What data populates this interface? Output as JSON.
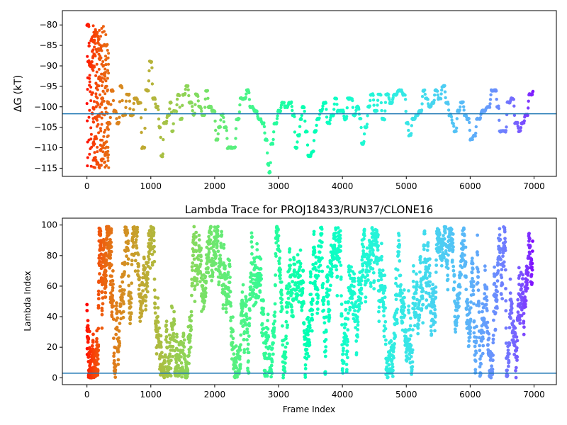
{
  "chart_data": [
    {
      "type": "scatter",
      "title": "",
      "xlabel": "",
      "ylabel": "ΔG (kT)",
      "xlim": [
        -385,
        7350
      ],
      "ylim": [
        -117,
        -76.5
      ],
      "xticks": [
        0,
        1000,
        2000,
        3000,
        4000,
        5000,
        6000,
        7000
      ],
      "yticks": [
        -80,
        -85,
        -90,
        -95,
        -100,
        -105,
        -110,
        -115
      ],
      "hline": -101.7,
      "hline_color": "#1f77b4",
      "colormap": "rainbow (early frames red → late frames violet)",
      "grid": false,
      "x_max_frame": 7000,
      "trace": [
        [
          0,
          -80
        ],
        [
          40,
          -90
        ],
        [
          90,
          -84
        ],
        [
          130,
          -82
        ],
        [
          180,
          -86
        ],
        [
          230,
          -98
        ],
        [
          260,
          -92
        ],
        [
          300,
          -85
        ],
        [
          330,
          -104
        ],
        [
          380,
          -96
        ],
        [
          420,
          -101
        ],
        [
          470,
          -104
        ],
        [
          520,
          -95
        ],
        [
          560,
          -102
        ],
        [
          620,
          -97
        ],
        [
          680,
          -102
        ],
        [
          740,
          -98
        ],
        [
          800,
          -99
        ],
        [
          860,
          -110
        ],
        [
          920,
          -96
        ],
        [
          980,
          -89
        ],
        [
          1030,
          -98
        ],
        [
          1080,
          -100
        ],
        [
          1130,
          -105
        ],
        [
          1160,
          -112
        ],
        [
          1200,
          -104
        ],
        [
          1260,
          -102
        ],
        [
          1300,
          -99
        ],
        [
          1330,
          -106
        ],
        [
          1360,
          -101
        ],
        [
          1420,
          -97
        ],
        [
          1460,
          -103
        ],
        [
          1500,
          -97
        ],
        [
          1550,
          -95
        ],
        [
          1600,
          -99
        ],
        [
          1660,
          -102
        ],
        [
          1700,
          -97
        ],
        [
          1750,
          -100
        ],
        [
          1800,
          -102
        ],
        [
          1860,
          -96
        ],
        [
          1900,
          -100
        ],
        [
          1960,
          -101
        ],
        [
          2020,
          -108
        ],
        [
          2060,
          -105
        ],
        [
          2100,
          -102
        ],
        [
          2150,
          -105
        ],
        [
          2200,
          -110
        ],
        [
          2280,
          -110
        ],
        [
          2340,
          -103
        ],
        [
          2400,
          -98
        ],
        [
          2450,
          -98
        ],
        [
          2500,
          -96
        ],
        [
          2550,
          -100
        ],
        [
          2620,
          -101
        ],
        [
          2680,
          -103
        ],
        [
          2740,
          -104
        ],
        [
          2790,
          -108
        ],
        [
          2830,
          -114
        ],
        [
          2850,
          -116
        ],
        [
          2880,
          -109
        ],
        [
          2930,
          -104
        ],
        [
          2990,
          -101
        ],
        [
          3050,
          -99
        ],
        [
          3100,
          -100
        ],
        [
          3160,
          -99
        ],
        [
          3220,
          -102
        ],
        [
          3260,
          -110
        ],
        [
          3300,
          -107
        ],
        [
          3340,
          -103
        ],
        [
          3370,
          -100
        ],
        [
          3420,
          -106
        ],
        [
          3460,
          -112
        ],
        [
          3520,
          -111
        ],
        [
          3560,
          -106
        ],
        [
          3600,
          -103
        ],
        [
          3650,
          -101
        ],
        [
          3700,
          -99
        ],
        [
          3760,
          -104
        ],
        [
          3820,
          -102
        ],
        [
          3880,
          -98
        ],
        [
          3920,
          -101
        ],
        [
          3980,
          -101
        ],
        [
          4030,
          -103
        ],
        [
          4080,
          -98
        ],
        [
          4120,
          -98
        ],
        [
          4170,
          -102
        ],
        [
          4220,
          -100
        ],
        [
          4270,
          -103
        ],
        [
          4300,
          -109
        ],
        [
          4350,
          -105
        ],
        [
          4400,
          -100
        ],
        [
          4440,
          -97
        ],
        [
          4500,
          -101
        ],
        [
          4560,
          -97
        ],
        [
          4620,
          -103
        ],
        [
          4680,
          -97
        ],
        [
          4740,
          -99
        ],
        [
          4800,
          -97
        ],
        [
          4870,
          -96
        ],
        [
          4950,
          -97
        ],
        [
          5000,
          -104
        ],
        [
          5040,
          -107
        ],
        [
          5090,
          -103
        ],
        [
          5150,
          -102
        ],
        [
          5200,
          -101
        ],
        [
          5260,
          -96
        ],
        [
          5300,
          -98
        ],
        [
          5350,
          -100
        ],
        [
          5400,
          -99
        ],
        [
          5450,
          -96
        ],
        [
          5500,
          -98
        ],
        [
          5560,
          -95
        ],
        [
          5620,
          -99
        ],
        [
          5670,
          -102
        ],
        [
          5720,
          -104
        ],
        [
          5750,
          -106
        ],
        [
          5800,
          -101
        ],
        [
          5850,
          -99
        ],
        [
          5910,
          -102
        ],
        [
          5950,
          -103
        ],
        [
          6000,
          -108
        ],
        [
          6050,
          -107
        ],
        [
          6100,
          -103
        ],
        [
          6180,
          -101
        ],
        [
          6260,
          -100
        ],
        [
          6330,
          -96
        ],
        [
          6380,
          -96
        ],
        [
          6420,
          -100
        ],
        [
          6460,
          -106
        ],
        [
          6530,
          -106
        ],
        [
          6580,
          -99
        ],
        [
          6640,
          -98
        ],
        [
          6700,
          -104
        ],
        [
          6760,
          -106
        ],
        [
          6800,
          -104
        ],
        [
          6860,
          -102
        ],
        [
          6920,
          -97
        ],
        [
          6990,
          -96
        ]
      ],
      "early_scatter": {
        "frame_range": [
          0,
          340
        ],
        "value_range": [
          -115,
          -80
        ]
      }
    },
    {
      "type": "scatter",
      "title": "Lambda Trace for PROJ18433/RUN37/CLONE16",
      "xlabel": "Frame Index",
      "ylabel": "Lambda Index",
      "xlim": [
        -385,
        7350
      ],
      "ylim": [
        -4.5,
        104.5
      ],
      "xticks": [
        0,
        1000,
        2000,
        3000,
        4000,
        5000,
        6000,
        7000
      ],
      "yticks": [
        0,
        20,
        40,
        60,
        80,
        100
      ],
      "hline": 3,
      "hline_color": "#1f77b4",
      "colormap": "rainbow (early frames red → late frames violet)",
      "grid": false,
      "value_range": [
        0,
        99
      ],
      "frame_range": [
        0,
        6980
      ]
    }
  ]
}
